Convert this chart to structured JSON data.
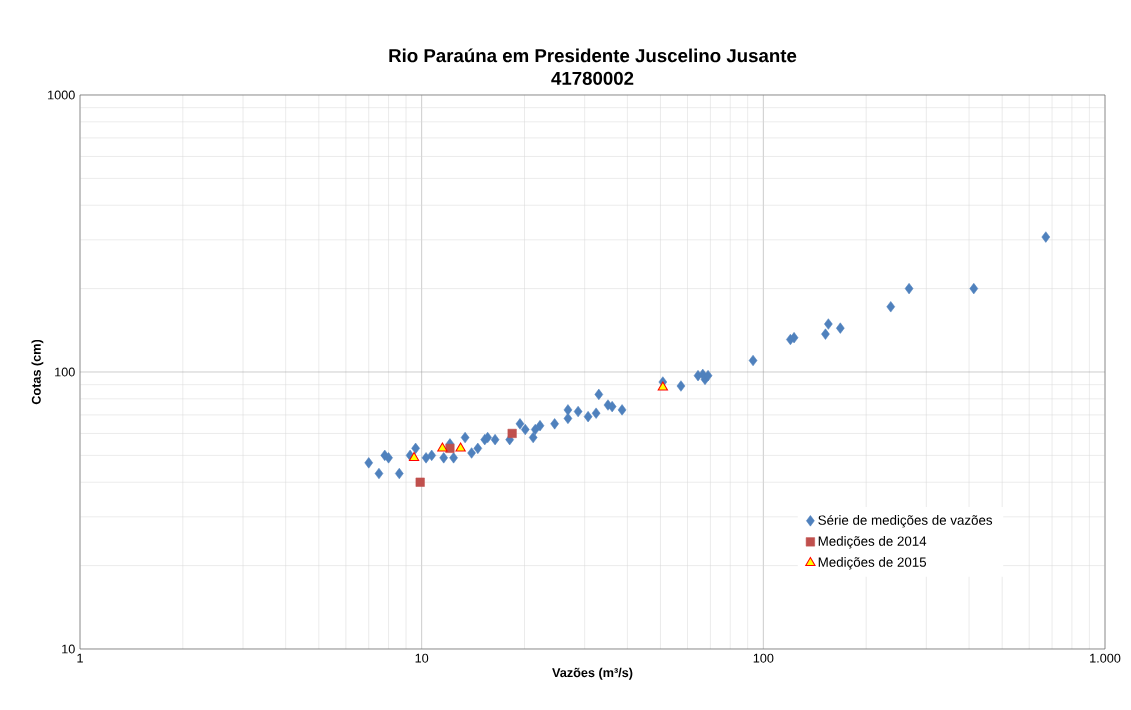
{
  "chart_data": {
    "type": "scatter",
    "title": "Rio Paraúna em Presidente Juscelino Jusante",
    "subtitle": "41780002",
    "xlabel": "Vazões (m³/s)",
    "ylabel": "Cotas (cm)",
    "log": "xy",
    "grid": true,
    "legend": "bottom right",
    "xlim": [
      1,
      1000
    ],
    "ylim": [
      10,
      1000
    ],
    "xticks": [
      1,
      10,
      100,
      {
        "value": 1000,
        "label": "1.000"
      }
    ],
    "yticks": [
      10,
      100,
      1000
    ],
    "series": [
      {
        "name": "Série de medições de vazões",
        "color": "#4f81bd",
        "marker": "diamond",
        "x": [
          7.0,
          7.5,
          7.8,
          8.0,
          8.6,
          9.25,
          9.6,
          10.3,
          10.7,
          11.6,
          12.1,
          12.4,
          13.4,
          14.0,
          14.6,
          15.3,
          15.6,
          16.4,
          18.1,
          19.4,
          20.1,
          21.2,
          21.5,
          22.2,
          24.5,
          26.8,
          26.8,
          28.7,
          30.7,
          32.4,
          33.0,
          35.1,
          36.1,
          38.6,
          50.8,
          57.4,
          64.4,
          67.5,
          66.5,
          68.9,
          93.3,
          120,
          123,
          152,
          155,
          168,
          236,
          267,
          413,
          671
        ],
        "values": [
          47,
          43,
          50,
          49,
          43,
          50,
          53,
          49,
          50,
          49,
          55,
          49,
          58,
          51,
          53,
          57,
          58,
          57,
          57,
          65,
          62,
          58,
          62,
          64,
          65,
          73,
          68,
          72,
          69,
          71,
          83,
          76,
          75,
          73,
          92,
          89,
          97,
          94,
          98,
          97,
          110,
          131,
          133,
          137,
          149,
          144,
          172,
          200,
          200,
          307
        ]
      },
      {
        "name": "Medições de 2014",
        "color": "#c0504d",
        "marker": "square",
        "x": [
          9.9,
          12.1,
          18.4
        ],
        "values": [
          40,
          53,
          60
        ]
      },
      {
        "name": "Medições de 2015",
        "color": "#ffff00",
        "marker": "triangle",
        "x": [
          9.5,
          11.5,
          13.0,
          50.8
        ],
        "values": [
          49,
          53,
          53,
          88
        ]
      }
    ]
  }
}
